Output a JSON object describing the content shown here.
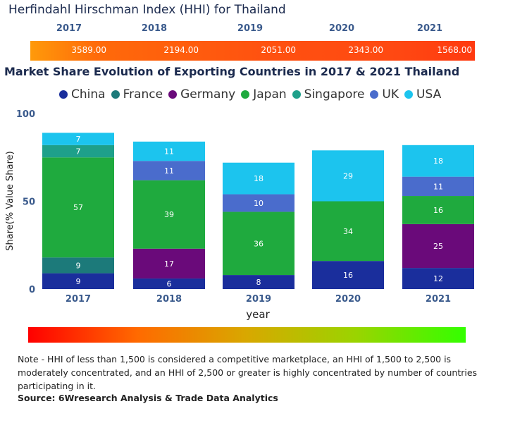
{
  "hhi": {
    "title": "Herfindahl Hirschman Index (HHI) for Thailand",
    "years": [
      "2017",
      "2018",
      "2019",
      "2020",
      "2021"
    ],
    "values": [
      "3589.00",
      "2194.00",
      "2051.00",
      "2343.00",
      "1568.00"
    ]
  },
  "chart_title": "Market Share Evolution of Exporting Countries in 2017 & 2021 Thailand",
  "chart_data": {
    "type": "bar",
    "stacked": true,
    "categories": [
      "2017",
      "2018",
      "2019",
      "2020",
      "2021"
    ],
    "series": [
      {
        "name": "China",
        "color": "#1a2e9c",
        "values": [
          9,
          6,
          8,
          16,
          12
        ]
      },
      {
        "name": "France",
        "color": "#1c7a7a",
        "values": [
          9,
          0,
          0,
          0,
          0
        ]
      },
      {
        "name": "Germany",
        "color": "#6a0a7a",
        "values": [
          0,
          17,
          0,
          0,
          25
        ]
      },
      {
        "name": "Japan",
        "color": "#1faa3e",
        "values": [
          57,
          39,
          36,
          34,
          16
        ]
      },
      {
        "name": "Singapore",
        "color": "#1ea08a",
        "values": [
          7,
          0,
          0,
          0,
          0
        ]
      },
      {
        "name": "UK",
        "color": "#4a6ccc",
        "values": [
          0,
          11,
          10,
          0,
          11
        ]
      },
      {
        "name": "USA",
        "color": "#1cc4ee",
        "values": [
          7,
          11,
          18,
          29,
          18
        ]
      }
    ],
    "xlabel": "year",
    "ylabel": "Share(% Value Share)",
    "ylim": [
      0,
      100
    ],
    "yticks": [
      "0",
      "50",
      "100"
    ]
  },
  "note": "Note - HHI of less than 1,500 is considered a competitive marketplace, an HHI of 1,500 to 2,500 is moderately concentrated, and an HHI of 2,500 or greater is highly concentrated by number of countries participating in it.",
  "source": "Source: 6Wresearch Analysis & Trade Data Analytics"
}
